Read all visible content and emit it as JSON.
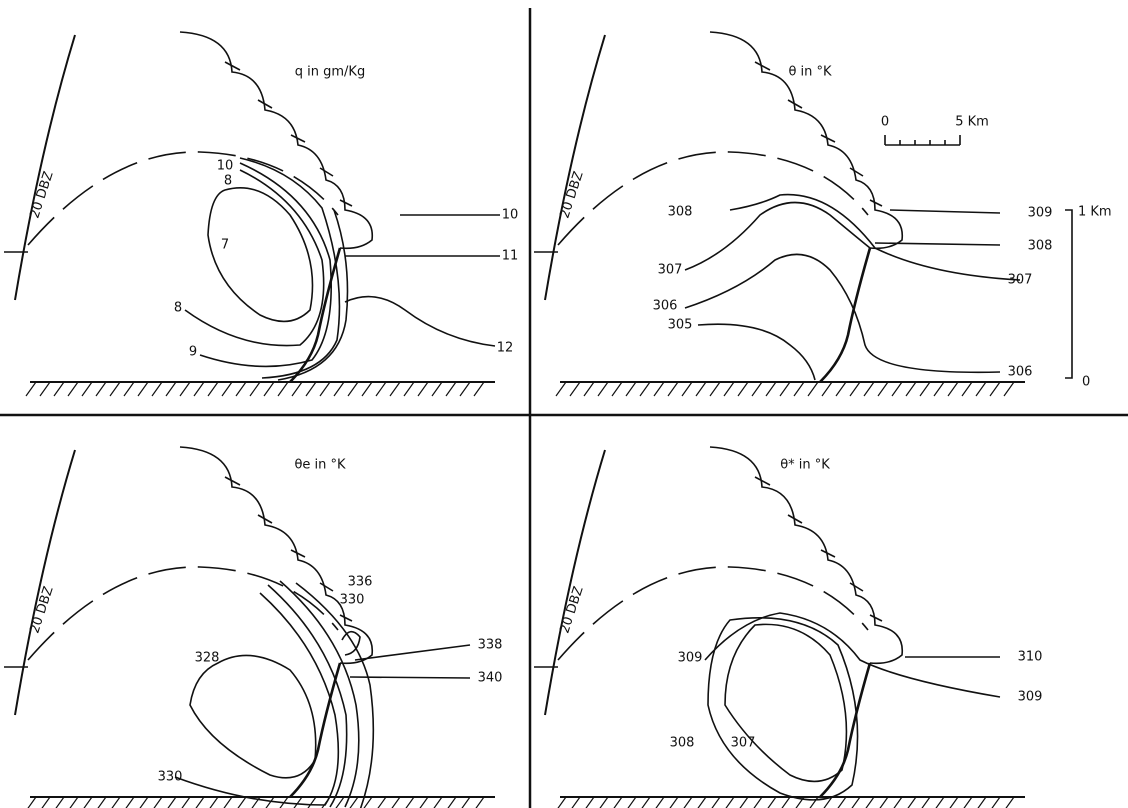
{
  "panels": [
    {
      "title": "q in gm/Kg",
      "radar_label": "20 DBZ",
      "contour_labels": [
        "10",
        "8",
        "7",
        "8",
        "9",
        "10",
        "11",
        "12"
      ]
    },
    {
      "title": "θ in °K",
      "radar_label": "20 DBZ",
      "contour_labels": [
        "308",
        "307",
        "306",
        "305",
        "309",
        "308",
        "307",
        "306"
      ]
    },
    {
      "title": "θe in °K",
      "radar_label": "20 DBZ",
      "contour_labels": [
        "336",
        "330",
        "328",
        "330",
        "338",
        "340"
      ]
    },
    {
      "title": "θ* in °K",
      "radar_label": "20 DBZ",
      "contour_labels": [
        "309",
        "308",
        "307",
        "310",
        "309"
      ]
    }
  ],
  "scale": {
    "horizontal": [
      "0",
      "5 Km"
    ],
    "vertical": [
      "1 Km",
      "0"
    ]
  }
}
